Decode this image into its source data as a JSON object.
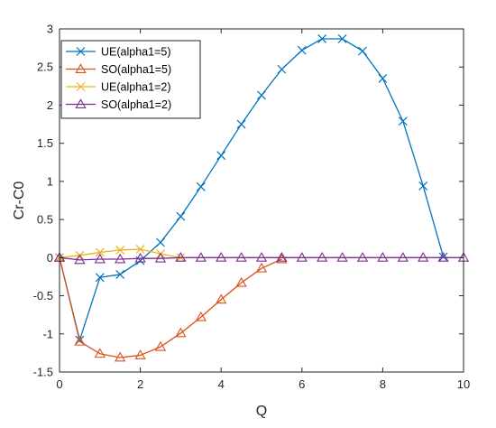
{
  "chart_data": {
    "type": "line",
    "title": "",
    "xlabel": "Q",
    "ylabel": "Cr-C0",
    "xlim": [
      0,
      10
    ],
    "ylim": [
      -1.5,
      3
    ],
    "xticks": [
      0,
      2,
      4,
      6,
      8,
      10
    ],
    "yticks": [
      -1.5,
      -1,
      -0.5,
      0,
      0.5,
      1,
      1.5,
      2,
      2.5,
      3
    ],
    "xtick_labels": [
      "0",
      "2",
      "4",
      "6",
      "8",
      "10"
    ],
    "ytick_labels": [
      "-1.5",
      "-1",
      "-0.5",
      "0",
      "0.5",
      "1",
      "1.5",
      "2",
      "2.5",
      "3"
    ],
    "grid": false,
    "legend_position": "top-left",
    "series": [
      {
        "name": "UE(alpha1=5)",
        "color": "#0072BD",
        "marker": "x",
        "x": [
          0,
          0.5,
          1,
          1.5,
          2,
          2.5,
          3,
          3.5,
          4,
          4.5,
          5,
          5.5,
          6,
          6.5,
          7,
          7.5,
          8,
          8.5,
          9,
          9.5
        ],
        "y": [
          0,
          -1.08,
          -0.26,
          -0.22,
          -0.04,
          0.2,
          0.54,
          0.93,
          1.34,
          1.75,
          2.13,
          2.47,
          2.72,
          2.87,
          2.87,
          2.71,
          2.35,
          1.79,
          0.94,
          0.01
        ]
      },
      {
        "name": "SO(alpha1=5)",
        "color": "#D95319",
        "marker": "triangle",
        "x": [
          0,
          0.5,
          1,
          1.5,
          2,
          2.5,
          3,
          3.5,
          4,
          4.5,
          5,
          5.5
        ],
        "y": [
          0,
          -1.1,
          -1.26,
          -1.31,
          -1.28,
          -1.17,
          -0.99,
          -0.78,
          -0.55,
          -0.33,
          -0.14,
          -0.02
        ]
      },
      {
        "name": "UE(alpha1=2)",
        "color": "#EDB120",
        "marker": "x",
        "x": [
          0,
          0.5,
          1,
          1.5,
          2,
          2.5,
          3
        ],
        "y": [
          0,
          0.03,
          0.07,
          0.1,
          0.11,
          0.05,
          0
        ]
      },
      {
        "name": "SO(alpha1=2)",
        "color": "#7E2F8E",
        "marker": "triangle",
        "x": [
          0,
          0.5,
          1,
          1.5,
          2,
          2.5,
          3,
          3.5,
          4,
          4.5,
          5,
          5.5,
          6,
          6.5,
          7,
          7.5,
          8,
          8.5,
          9,
          9.5,
          10
        ],
        "y": [
          0,
          -0.03,
          -0.02,
          -0.02,
          -0.01,
          -0.01,
          0,
          0,
          0,
          0,
          0,
          0,
          0,
          0,
          0,
          0,
          0,
          0,
          0,
          0,
          0
        ]
      }
    ]
  }
}
